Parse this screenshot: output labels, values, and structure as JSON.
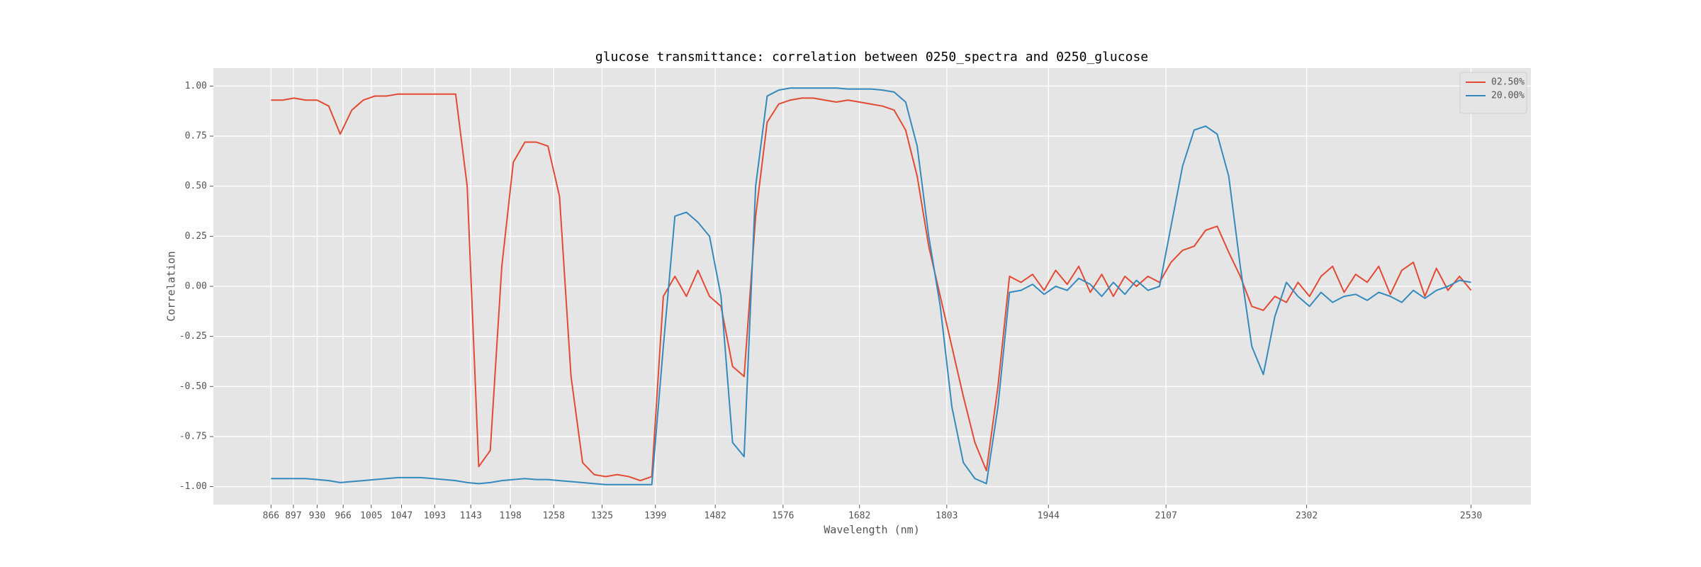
{
  "chart_data": {
    "type": "line",
    "title": "glucose transmittance: correlation between 0250_spectra and 0250_glucose",
    "xlabel": "Wavelength (nm)",
    "ylabel": "Correlation",
    "x": [
      866,
      882,
      898,
      914,
      930,
      946,
      962,
      978,
      994,
      1010,
      1026,
      1042,
      1058,
      1074,
      1090,
      1106,
      1122,
      1138,
      1154,
      1170,
      1186,
      1202,
      1218,
      1234,
      1250,
      1266,
      1282,
      1298,
      1314,
      1330,
      1346,
      1362,
      1378,
      1394,
      1410,
      1426,
      1442,
      1458,
      1474,
      1490,
      1506,
      1522,
      1538,
      1554,
      1570,
      1586,
      1602,
      1618,
      1634,
      1650,
      1666,
      1682,
      1698,
      1714,
      1730,
      1746,
      1762,
      1778,
      1794,
      1810,
      1826,
      1842,
      1858,
      1874,
      1890,
      1906,
      1922,
      1938,
      1954,
      1970,
      1986,
      2002,
      2018,
      2034,
      2050,
      2066,
      2082,
      2098,
      2114,
      2130,
      2146,
      2162,
      2178,
      2194,
      2210,
      2226,
      2242,
      2258,
      2274,
      2290,
      2306,
      2322,
      2338,
      2354,
      2370,
      2386,
      2402,
      2418,
      2434,
      2450,
      2466,
      2482,
      2498,
      2514,
      2530
    ],
    "series": [
      {
        "name": "02.50%",
        "color": "#e24a33",
        "values": [
          0.93,
          0.93,
          0.94,
          0.93,
          0.93,
          0.9,
          0.76,
          0.88,
          0.93,
          0.95,
          0.95,
          0.96,
          0.96,
          0.96,
          0.96,
          0.96,
          0.96,
          0.5,
          -0.9,
          -0.82,
          0.1,
          0.62,
          0.72,
          0.72,
          0.7,
          0.45,
          -0.45,
          -0.88,
          -0.94,
          -0.95,
          -0.94,
          -0.95,
          -0.97,
          -0.95,
          -0.05,
          0.05,
          -0.05,
          0.08,
          -0.05,
          -0.1,
          -0.4,
          -0.45,
          0.35,
          0.82,
          0.91,
          0.93,
          0.94,
          0.94,
          0.93,
          0.92,
          0.93,
          0.92,
          0.91,
          0.9,
          0.88,
          0.78,
          0.55,
          0.2,
          -0.05,
          -0.3,
          -0.55,
          -0.78,
          -0.92,
          -0.5,
          0.05,
          0.02,
          0.06,
          -0.02,
          0.08,
          0.01,
          0.1,
          -0.03,
          0.06,
          -0.05,
          0.05,
          0.0,
          0.05,
          0.02,
          0.12,
          0.18,
          0.2,
          0.28,
          0.3,
          0.17,
          0.05,
          -0.1,
          -0.12,
          -0.05,
          -0.08,
          0.02,
          -0.05,
          0.05,
          0.1,
          -0.03,
          0.06,
          0.02,
          0.1,
          -0.04,
          0.08,
          0.12,
          -0.05,
          0.09,
          -0.02,
          0.05,
          -0.02
        ]
      },
      {
        "name": "20.00%",
        "color": "#348abd",
        "values": [
          -0.96,
          -0.96,
          -0.96,
          -0.96,
          -0.965,
          -0.97,
          -0.98,
          -0.975,
          -0.97,
          -0.965,
          -0.96,
          -0.955,
          -0.955,
          -0.955,
          -0.96,
          -0.965,
          -0.97,
          -0.98,
          -0.985,
          -0.98,
          -0.97,
          -0.965,
          -0.96,
          -0.965,
          -0.965,
          -0.97,
          -0.975,
          -0.98,
          -0.985,
          -0.99,
          -0.99,
          -0.99,
          -0.99,
          -0.99,
          -0.3,
          0.35,
          0.37,
          0.32,
          0.25,
          -0.05,
          -0.78,
          -0.85,
          0.5,
          0.95,
          0.98,
          0.99,
          0.99,
          0.99,
          0.99,
          0.99,
          0.985,
          0.985,
          0.985,
          0.98,
          0.97,
          0.92,
          0.7,
          0.25,
          -0.1,
          -0.6,
          -0.88,
          -0.96,
          -0.985,
          -0.6,
          -0.03,
          -0.02,
          0.01,
          -0.04,
          0.0,
          -0.02,
          0.04,
          0.01,
          -0.05,
          0.02,
          -0.04,
          0.03,
          -0.02,
          0.0,
          0.3,
          0.6,
          0.78,
          0.8,
          0.76,
          0.55,
          0.1,
          -0.3,
          -0.44,
          -0.15,
          0.02,
          -0.05,
          -0.1,
          -0.03,
          -0.08,
          -0.05,
          -0.04,
          -0.07,
          -0.03,
          -0.05,
          -0.08,
          -0.02,
          -0.06,
          -0.02,
          0.0,
          0.03,
          0.02
        ]
      }
    ],
    "xlim": [
      786,
      2613
    ],
    "xticks": [
      866,
      897,
      930,
      966,
      1005,
      1047,
      1093,
      1143,
      1198,
      1258,
      1325,
      1399,
      1482,
      1576,
      1682,
      1803,
      1944,
      2107,
      2302,
      2530
    ],
    "ylim": [
      -1.09,
      1.09
    ],
    "yticks": [
      {
        "value": -1,
        "label": "-1.00"
      },
      {
        "value": -0.75,
        "label": "-0.75"
      },
      {
        "value": -0.5,
        "label": "-0.50"
      },
      {
        "value": -0.25,
        "label": "-0.25"
      },
      {
        "value": 0,
        "label": "0.00"
      },
      {
        "value": 0.25,
        "label": "0.25"
      },
      {
        "value": 0.5,
        "label": "0.50"
      },
      {
        "value": 0.75,
        "label": "0.75"
      },
      {
        "value": 1,
        "label": "1.00"
      }
    ],
    "grid": true,
    "legend": "upper right"
  }
}
